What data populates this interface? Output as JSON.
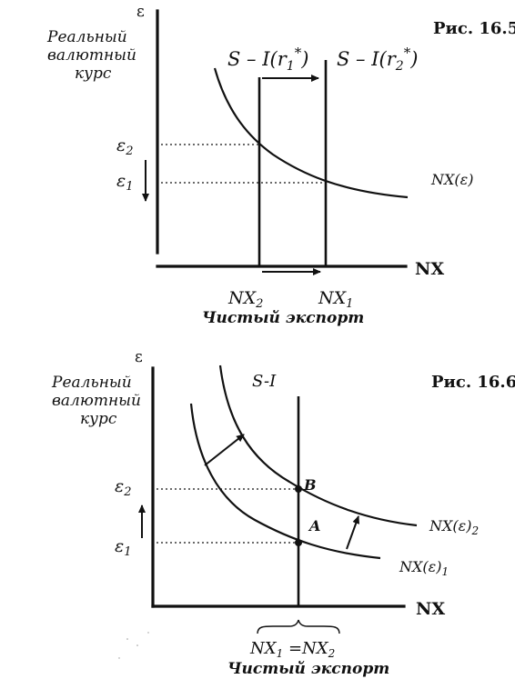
{
  "fig1": {
    "caption": "Рис. 16.5",
    "y_symbol": "ε",
    "y_label": [
      "Реальный",
      "валютный",
      "курс"
    ],
    "x_axis": "NX",
    "x_caption": "Чистый экспорт",
    "curve_label": "NX(ε)",
    "s_i_label_1": "S – I(r",
    "s_i_sub_1": "1",
    "s_i_label_2": "S – I(r",
    "s_i_sub_2": "2",
    "s_i_star": "*",
    "s_i_close": ")",
    "e2": "ε",
    "e2_sub": "2",
    "e1": "ε",
    "e1_sub": "1",
    "nx2": "NX",
    "nx2_sub": "2",
    "nx1": "NX",
    "nx1_sub": "1"
  },
  "fig2": {
    "caption": "Рис. 16.6",
    "y_symbol": "ε",
    "y_label": [
      "Реальный",
      "валютный",
      "курс"
    ],
    "x_axis": "NX",
    "x_caption": "Чистый экспорт",
    "s_i_label": "S-I",
    "curve1_label": "NX(ε)",
    "curve1_sub": "1",
    "curve2_label": "NX(ε)",
    "curve2_sub": "2",
    "point_a": "A",
    "point_b": "B",
    "e2": "ε",
    "e2_sub": "2",
    "e1": "ε",
    "e1_sub": "1",
    "nx_eq": "NX",
    "nx_eq_sub1": "1",
    "nx_eq_mid": " =NX",
    "nx_eq_sub2": "2"
  }
}
